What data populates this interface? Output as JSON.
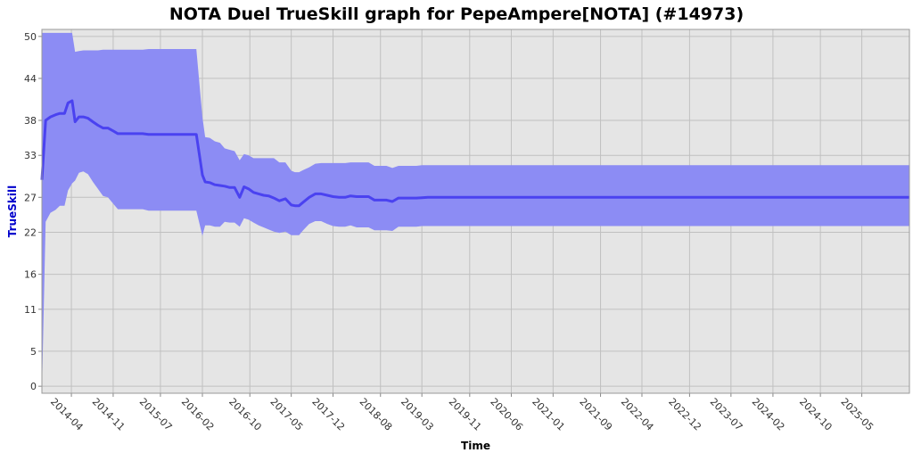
{
  "chart_data": {
    "type": "area",
    "title": "NOTA Duel TrueSkill graph for PepeAmpere[NOTA] (#14973)",
    "xlabel": "Time",
    "ylabel": "TrueSkill",
    "ylim": [
      -1,
      51
    ],
    "yticks": [
      0,
      5,
      11,
      16,
      22,
      27,
      33,
      38,
      44,
      50
    ],
    "xticks": [
      "2014-04",
      "2014-11",
      "2015-07",
      "2016-02",
      "2016-10",
      "2017-05",
      "2017-12",
      "2018-08",
      "2019-03",
      "2019-11",
      "2020-06",
      "2021-01",
      "2021-09",
      "2022-04",
      "2022-12",
      "2023-07",
      "2024-02",
      "2024-10",
      "2025-05"
    ],
    "grid": true,
    "colors": {
      "line": "#4a42f0",
      "band": "#8c8cf4",
      "plot_bg": "#e5e5e5",
      "grid": "#c0c0c0"
    },
    "x": [
      "2013-11-01",
      "2013-11-20",
      "2013-12-15",
      "2014-01-10",
      "2014-02-01",
      "2014-02-25",
      "2014-03-15",
      "2014-04-05",
      "2014-04-20",
      "2014-05-10",
      "2014-06-01",
      "2014-06-25",
      "2014-07-20",
      "2014-08-15",
      "2014-09-10",
      "2014-10-05",
      "2014-11-01",
      "2014-11-25",
      "2014-12-20",
      "2015-01-15",
      "2015-02-05",
      "2015-03-01",
      "2015-04-01",
      "2015-05-01",
      "2015-06-01",
      "2015-07-01",
      "2015-08-01",
      "2015-09-01",
      "2015-10-01",
      "2015-11-01",
      "2015-12-01",
      "2016-01-01",
      "2016-02-01",
      "2016-02-15",
      "2016-03-10",
      "2016-04-05",
      "2016-05-01",
      "2016-05-25",
      "2016-06-20",
      "2016-07-15",
      "2016-08-10",
      "2016-09-01",
      "2016-09-25",
      "2016-10-20",
      "2016-11-15",
      "2016-12-10",
      "2017-01-05",
      "2017-02-01",
      "2017-03-01",
      "2017-04-01",
      "2017-05-01",
      "2017-05-20",
      "2017-06-10",
      "2017-07-01",
      "2017-08-01",
      "2017-09-01",
      "2017-10-01",
      "2017-11-01",
      "2017-12-01",
      "2018-01-01",
      "2018-02-01",
      "2018-03-01",
      "2018-04-01",
      "2018-05-01",
      "2018-06-01",
      "2018-07-01",
      "2018-08-01",
      "2018-09-01",
      "2018-10-01",
      "2018-11-01",
      "2018-12-01",
      "2019-01-01",
      "2019-02-01",
      "2019-03-01",
      "2019-04-01",
      "2019-05-01",
      "2019-06-01",
      "2019-07-01",
      "2019-08-01",
      "2019-09-01",
      "2019-10-01",
      "2019-11-01",
      "2019-12-01",
      "2020-06-01",
      "2021-01-01",
      "2021-09-01",
      "2022-04-01",
      "2022-12-01",
      "2023-07-01",
      "2024-02-01",
      "2024-10-01",
      "2025-05-01",
      "2025-12-31"
    ],
    "series": [
      {
        "name": "mu",
        "values": [
          29.5,
          38.0,
          38.5,
          38.8,
          39.0,
          39.0,
          40.5,
          40.8,
          37.8,
          38.5,
          38.5,
          38.3,
          37.8,
          37.3,
          36.9,
          36.9,
          36.5,
          36.1,
          36.1,
          36.1,
          36.1,
          36.1,
          36.1,
          36.0,
          36.0,
          36.0,
          36.0,
          36.0,
          36.0,
          36.0,
          36.0,
          36.0,
          30.2,
          29.2,
          29.1,
          28.8,
          28.7,
          28.6,
          28.4,
          28.4,
          27.0,
          28.5,
          28.2,
          27.7,
          27.5,
          27.3,
          27.2,
          26.9,
          26.5,
          26.8,
          25.9,
          25.8,
          25.8,
          26.3,
          27.0,
          27.5,
          27.5,
          27.3,
          27.1,
          27.0,
          27.0,
          27.2,
          27.1,
          27.1,
          27.1,
          26.6,
          26.6,
          26.6,
          26.4,
          26.9,
          26.9,
          26.9,
          26.9,
          26.95,
          27.0,
          27.0,
          27.0,
          27.0,
          27.0,
          27.0,
          27.0,
          27.0,
          27.0,
          27.0,
          27.0,
          27.0,
          27.0,
          27.0,
          27.0,
          27.0,
          27.0,
          27.0,
          27.0
        ]
      },
      {
        "name": "upper",
        "values": [
          50.5,
          50.5,
          50.5,
          50.5,
          50.5,
          50.5,
          50.5,
          50.5,
          47.8,
          47.9,
          48.0,
          48.0,
          48.0,
          48.0,
          48.1,
          48.1,
          48.1,
          48.1,
          48.1,
          48.1,
          48.1,
          48.1,
          48.1,
          48.2,
          48.2,
          48.2,
          48.2,
          48.2,
          48.2,
          48.2,
          48.2,
          48.2,
          38.5,
          35.6,
          35.5,
          35.0,
          34.8,
          34.0,
          33.8,
          33.6,
          32.3,
          33.2,
          33.0,
          32.6,
          32.6,
          32.6,
          32.6,
          32.6,
          32.0,
          32.0,
          30.8,
          30.6,
          30.6,
          30.9,
          31.3,
          31.8,
          31.9,
          31.9,
          31.9,
          31.9,
          31.9,
          32.0,
          32.0,
          32.0,
          32.0,
          31.5,
          31.5,
          31.5,
          31.2,
          31.5,
          31.5,
          31.5,
          31.5,
          31.6,
          31.6,
          31.6,
          31.6,
          31.6,
          31.6,
          31.6,
          31.6,
          31.6,
          31.6,
          31.6,
          31.6,
          31.6,
          31.6,
          31.6,
          31.6,
          31.6,
          31.6,
          31.6,
          31.6
        ]
      },
      {
        "name": "lower",
        "values": [
          -1.0,
          23.5,
          24.8,
          25.2,
          25.8,
          25.8,
          28.0,
          29.0,
          29.4,
          30.5,
          30.7,
          30.3,
          29.2,
          28.2,
          27.2,
          27.0,
          26.1,
          25.3,
          25.3,
          25.3,
          25.3,
          25.3,
          25.3,
          25.1,
          25.1,
          25.1,
          25.1,
          25.1,
          25.1,
          25.1,
          25.1,
          25.1,
          21.5,
          23.0,
          23.0,
          22.8,
          22.8,
          23.5,
          23.4,
          23.4,
          22.8,
          24.0,
          23.8,
          23.4,
          23.0,
          22.7,
          22.4,
          22.1,
          21.9,
          22.1,
          21.6,
          21.6,
          21.6,
          22.3,
          23.2,
          23.6,
          23.6,
          23.2,
          22.9,
          22.8,
          22.8,
          23.0,
          22.7,
          22.7,
          22.7,
          22.3,
          22.3,
          22.3,
          22.2,
          22.8,
          22.8,
          22.8,
          22.8,
          22.9,
          22.9,
          22.9,
          22.9,
          22.9,
          22.9,
          22.9,
          22.9,
          22.9,
          22.9,
          22.9,
          22.9,
          22.9,
          22.9,
          22.9,
          22.9,
          22.9,
          22.9,
          22.9,
          22.9
        ]
      }
    ]
  }
}
